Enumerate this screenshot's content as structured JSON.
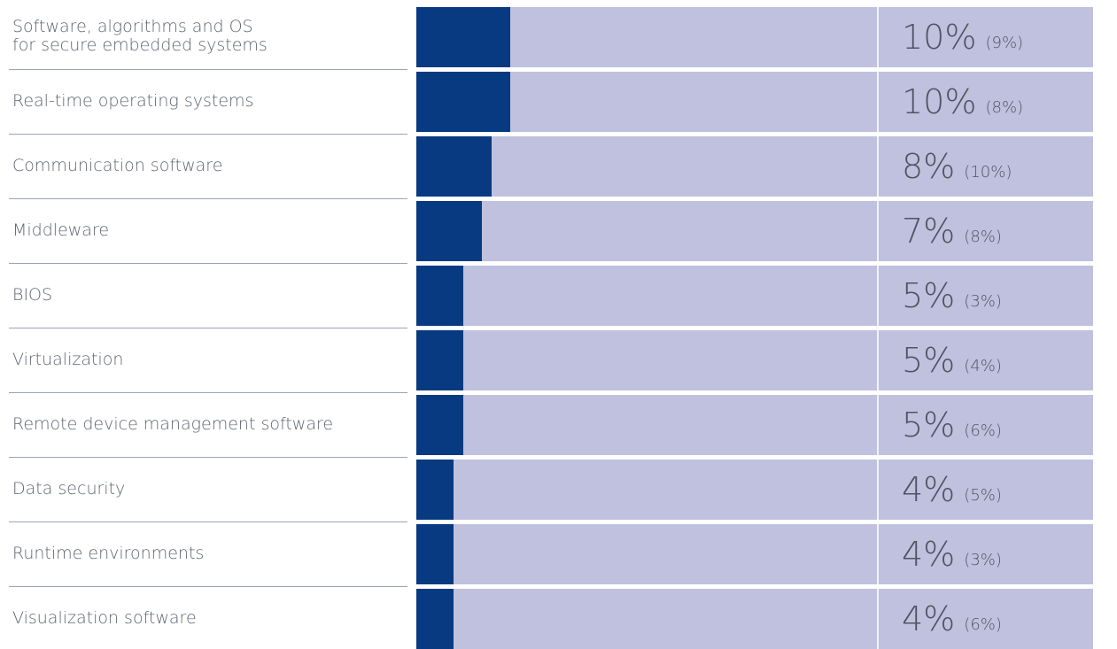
{
  "chart_data": {
    "type": "bar",
    "orientation": "horizontal",
    "xlim": [
      0,
      100
    ],
    "colors": {
      "fill": "#073a80",
      "track": "#c0c1de",
      "text": "#4d5563",
      "label": "#5f6670"
    },
    "categories": [
      "Software, algorithms and OS\nfor secure embedded systems",
      "Real-time operating systems",
      "Communication software",
      "Middleware",
      "BIOS",
      "Virtualization",
      "Remote device management software",
      "Data security",
      "Runtime environments",
      "Visualization software"
    ],
    "values": [
      10,
      10,
      8,
      7,
      5,
      5,
      5,
      4,
      4,
      4
    ],
    "value_labels": [
      "10%",
      "10%",
      "8%",
      "7%",
      "5%",
      "5%",
      "5%",
      "4%",
      "4%",
      "4%"
    ],
    "previous_values": [
      9,
      8,
      10,
      8,
      3,
      4,
      6,
      5,
      3,
      6
    ],
    "previous_labels": [
      "(9%)",
      "(8%)",
      "(10%)",
      "(8%)",
      "(3%)",
      "(4%)",
      "(6%)",
      "(5%)",
      "(3%)",
      "(6%)"
    ]
  }
}
